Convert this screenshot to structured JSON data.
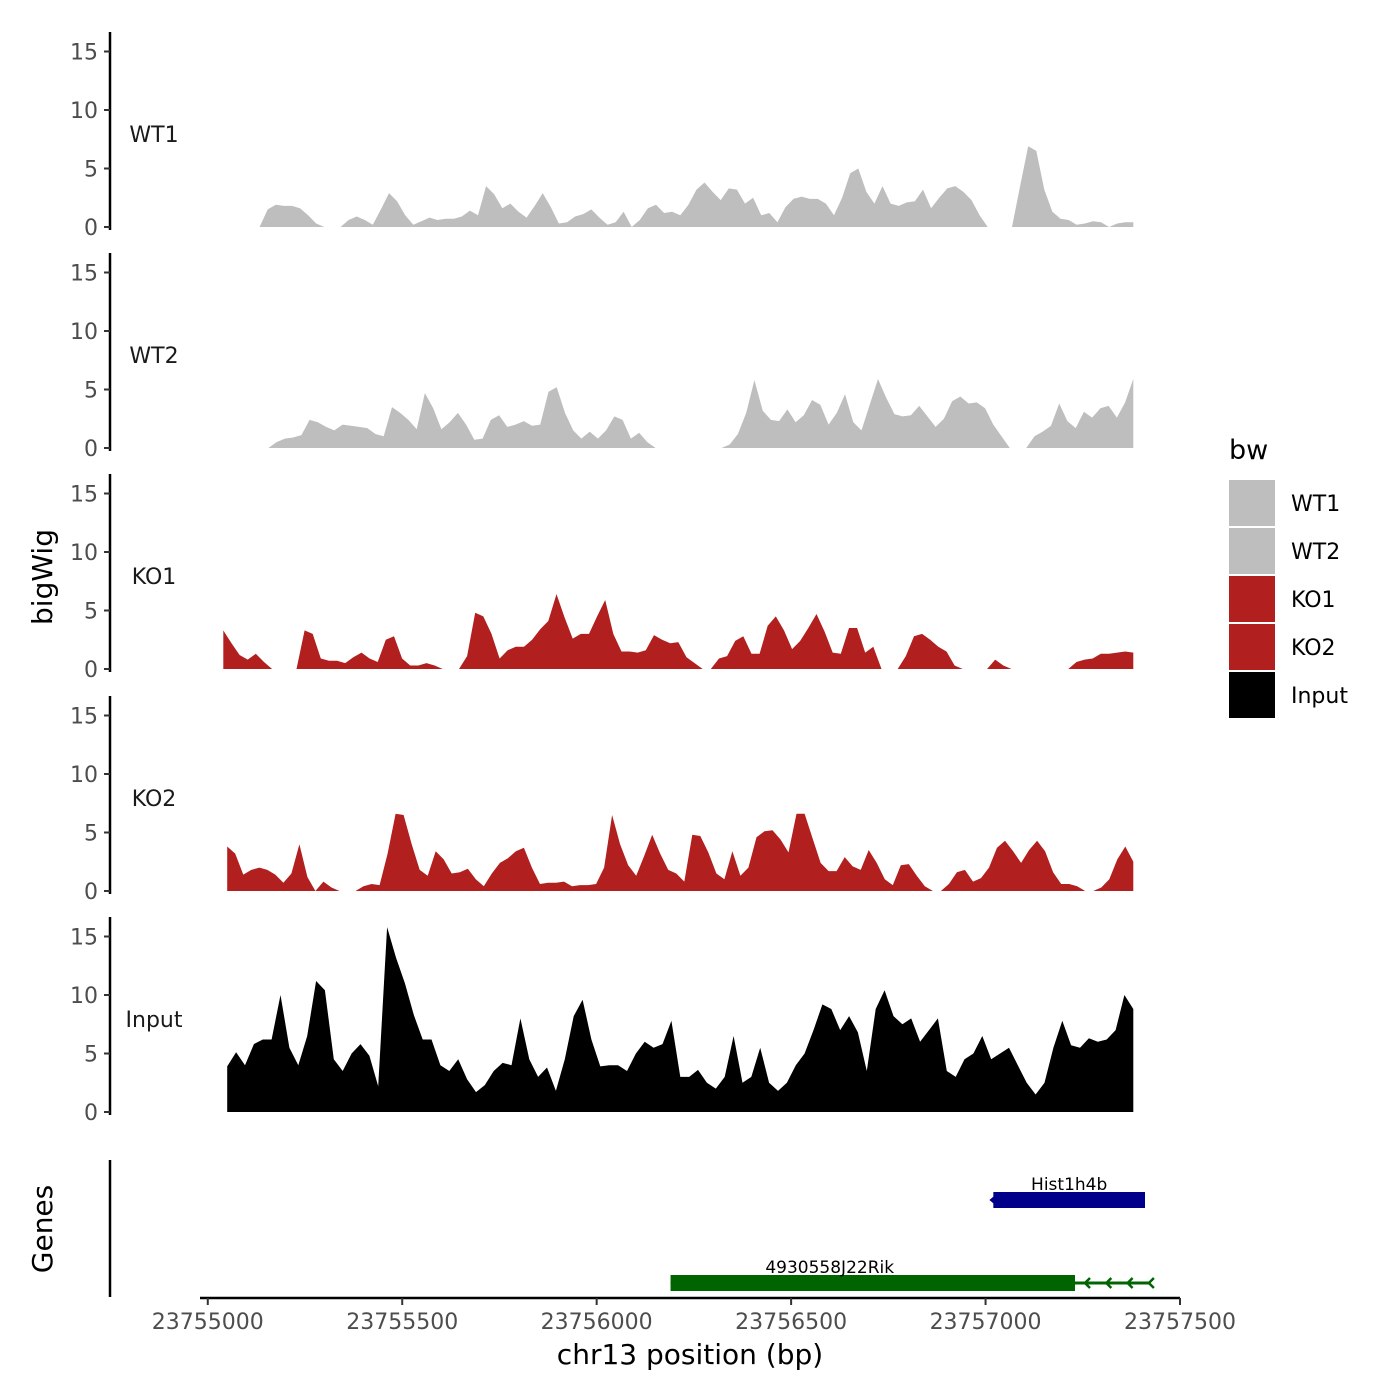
{
  "chart_data": {
    "type": "area",
    "ylabel": "bigWig",
    "genes_label": "Genes",
    "xlabel": "chr13 position (bp)",
    "xlim": [
      23754980,
      23757500
    ],
    "x_ticks": [
      23755000,
      23755500,
      23756000,
      23756500,
      23757000,
      23757500
    ],
    "x_tick_labels": [
      "23755000",
      "23755500",
      "23756000",
      "23756500",
      "23757000",
      "23757500"
    ],
    "ylim": [
      0,
      16
    ],
    "y_ticks": [
      0,
      5,
      10,
      15
    ],
    "y_tick_labels": [
      "0",
      "5",
      "10",
      "15"
    ],
    "legend": {
      "title": "bw",
      "position": "right"
    },
    "tracks": [
      {
        "name": "WT1",
        "color": "#bebebe",
        "start": 23755050,
        "end": 23757380,
        "values": [
          0,
          0,
          0,
          0,
          0,
          1.5,
          1.9,
          1.8,
          1.8,
          1.6,
          1.0,
          0.3,
          0,
          0,
          0,
          0.6,
          0.9,
          0.6,
          0.2,
          1.5,
          2.9,
          2.2,
          1.0,
          0.2,
          0.5,
          0.8,
          0.6,
          0.7,
          0.7,
          0.9,
          1.4,
          1.0,
          3.5,
          2.8,
          1.6,
          2.0,
          1.3,
          0.8,
          1.8,
          2.9,
          1.7,
          0.3,
          0.4,
          0.9,
          1.1,
          1.5,
          0.8,
          0.2,
          0.4,
          1.3,
          0,
          0.6,
          1.6,
          1.9,
          1.2,
          1.3,
          1.0,
          1.9,
          3.2,
          3.8,
          3.0,
          2.3,
          3.3,
          3.2,
          2.0,
          2.5,
          1.0,
          1.2,
          0.4,
          1.7,
          2.4,
          2.6,
          2.4,
          2.4,
          2.0,
          1.0,
          2.5,
          4.6,
          5.0,
          3.0,
          2.0,
          3.5,
          2.0,
          1.8,
          2.1,
          2.2,
          3.2,
          1.6,
          2.5,
          3.3,
          3.5,
          3.0,
          2.3,
          1.0,
          0,
          0,
          0,
          0,
          3.5,
          6.9,
          6.5,
          3.2,
          1.3,
          0.7,
          0.6,
          0.2,
          0.3,
          0.5,
          0.4,
          0,
          0.3,
          0.4,
          0.4
        ]
      },
      {
        "name": "WT2",
        "color": "#bebebe",
        "start": 23755050,
        "end": 23757380,
        "values": [
          0,
          0,
          0,
          0,
          0,
          0,
          0.5,
          0.8,
          0.9,
          1.1,
          2.4,
          2.2,
          1.8,
          1.5,
          2.0,
          1.9,
          1.8,
          1.7,
          1.2,
          1.0,
          3.5,
          3.0,
          2.4,
          1.6,
          4.7,
          3.4,
          1.6,
          2.2,
          3.0,
          2.0,
          0.7,
          0.8,
          2.4,
          2.8,
          1.8,
          2.0,
          2.3,
          1.9,
          2.0,
          4.8,
          5.2,
          3.0,
          1.5,
          0.8,
          1.4,
          0.8,
          1.5,
          2.7,
          2.4,
          0.8,
          1.3,
          0.5,
          0,
          0,
          0,
          0,
          0,
          0,
          0,
          0,
          0,
          0.3,
          1.2,
          3.0,
          5.8,
          3.2,
          2.4,
          2.3,
          3.3,
          2.2,
          2.8,
          4.1,
          3.7,
          2.0,
          3.0,
          4.6,
          2.2,
          1.5,
          3.7,
          5.9,
          4.3,
          2.9,
          2.7,
          2.8,
          3.6,
          2.7,
          1.8,
          2.5,
          4.0,
          4.4,
          3.8,
          3.9,
          3.4,
          2.0,
          1.0,
          0,
          0,
          0,
          1.0,
          1.4,
          1.9,
          3.8,
          2.3,
          1.7,
          3.1,
          2.6,
          3.4,
          3.6,
          2.6,
          3.9,
          5.9
        ]
      },
      {
        "name": "KO1",
        "color": "#b21f1f",
        "start": 23755040,
        "end": 23757380,
        "values": [
          3.3,
          2.2,
          1.2,
          0.8,
          1.3,
          0.6,
          0,
          0,
          0,
          0,
          3.3,
          3.0,
          0.9,
          0.7,
          0.7,
          0.5,
          1.0,
          1.4,
          0.9,
          0.6,
          2.5,
          2.8,
          0.9,
          0.3,
          0.3,
          0.5,
          0.3,
          0,
          0,
          0,
          1.1,
          4.8,
          4.5,
          3.0,
          0.9,
          1.6,
          1.9,
          1.9,
          2.5,
          3.4,
          4.1,
          6.4,
          4.4,
          2.6,
          3.0,
          3.0,
          4.5,
          5.9,
          3.0,
          1.5,
          1.5,
          1.4,
          1.6,
          2.9,
          2.5,
          2.2,
          2.3,
          1.0,
          0.5,
          0,
          0,
          0.9,
          1.1,
          2.4,
          2.8,
          1.3,
          1.3,
          3.7,
          4.5,
          3.3,
          1.7,
          2.4,
          3.5,
          4.7,
          3.2,
          1.4,
          1.3,
          3.5,
          3.5,
          1.4,
          1.9,
          0,
          0,
          0,
          1.1,
          2.8,
          3.0,
          2.5,
          1.9,
          1.5,
          0.3,
          0,
          0,
          0,
          0,
          0.8,
          0.3,
          0,
          0,
          0,
          0,
          0,
          0,
          0,
          0,
          0.6,
          0.8,
          0.9,
          1.3,
          1.3,
          1.4,
          1.5,
          1.4
        ]
      },
      {
        "name": "KO2",
        "color": "#b21f1f",
        "start": 23755050,
        "end": 23757380,
        "values": [
          3.8,
          3.2,
          1.4,
          1.8,
          2.0,
          1.8,
          1.4,
          0.7,
          1.5,
          4.0,
          1.2,
          0,
          0.8,
          0.3,
          0,
          0,
          0,
          0.4,
          0.6,
          0.5,
          3.2,
          6.6,
          6.5,
          4.0,
          1.8,
          1.3,
          3.4,
          2.7,
          1.5,
          1.6,
          1.9,
          1.0,
          0.4,
          1.5,
          2.4,
          2.8,
          3.4,
          3.7,
          2.0,
          0.6,
          0.7,
          0.7,
          0.8,
          0.4,
          0.5,
          0.5,
          0.6,
          2.0,
          6.5,
          4.0,
          2.2,
          1.3,
          3.0,
          4.8,
          3.2,
          1.8,
          1.5,
          0.8,
          4.8,
          4.7,
          3.3,
          1.5,
          1.0,
          3.4,
          1.3,
          2.0,
          4.6,
          5.1,
          5.2,
          4.4,
          3.3,
          6.6,
          6.6,
          4.5,
          2.4,
          1.7,
          1.7,
          2.9,
          2.1,
          1.8,
          3.5,
          2.4,
          1.0,
          0.5,
          2.2,
          2.3,
          1.3,
          0.4,
          0,
          0,
          0.6,
          1.6,
          1.8,
          0.8,
          1.1,
          2.0,
          3.7,
          4.3,
          3.4,
          2.4,
          3.5,
          4.3,
          3.4,
          1.6,
          0.6,
          0.6,
          0.4,
          0,
          0,
          0.3,
          1.0,
          2.7,
          3.8,
          2.5
        ]
      },
      {
        "name": "Input",
        "color": "#000000",
        "start": 23755050,
        "end": 23757380,
        "values": [
          3.9,
          5.1,
          4.0,
          5.8,
          6.2,
          6.2,
          10.0,
          5.5,
          4.0,
          6.5,
          11.2,
          10.4,
          4.5,
          3.5,
          5.0,
          5.8,
          4.8,
          2.2,
          15.8,
          13.2,
          11.0,
          8.3,
          6.2,
          6.2,
          4.0,
          3.5,
          4.5,
          2.8,
          1.7,
          2.3,
          3.5,
          4.2,
          4.0,
          8.0,
          4.5,
          3.0,
          3.8,
          1.8,
          4.5,
          8.2,
          9.6,
          6.2,
          3.9,
          4.0,
          4.0,
          3.5,
          5.0,
          6.0,
          5.5,
          5.8,
          7.8,
          3.0,
          3.0,
          3.6,
          2.5,
          2.0,
          3.0,
          6.5,
          2.5,
          3.0,
          5.5,
          2.5,
          1.8,
          2.5,
          4.0,
          5.0,
          7.0,
          9.2,
          8.8,
          7.0,
          8.2,
          6.8,
          3.5,
          8.8,
          10.4,
          8.2,
          7.5,
          8.0,
          6.0,
          7.0,
          8.0,
          3.5,
          3.0,
          4.5,
          5.0,
          6.5,
          4.5,
          5.0,
          5.5,
          4.0,
          2.5,
          1.5,
          2.5,
          5.5,
          7.8,
          5.7,
          5.5,
          6.3,
          6.0,
          6.2,
          7.0,
          10.0,
          8.8
        ]
      }
    ],
    "genes": [
      {
        "name": "Hist1h4b",
        "start": 23757020,
        "end": 23757410,
        "strand": "-",
        "color": "#00008b",
        "row": 1
      },
      {
        "name": "4930558J22Rik",
        "start": 23756190,
        "end": 23757420,
        "thick_end": 23757230,
        "strand": "-",
        "color": "#006400",
        "row": 2
      }
    ]
  }
}
